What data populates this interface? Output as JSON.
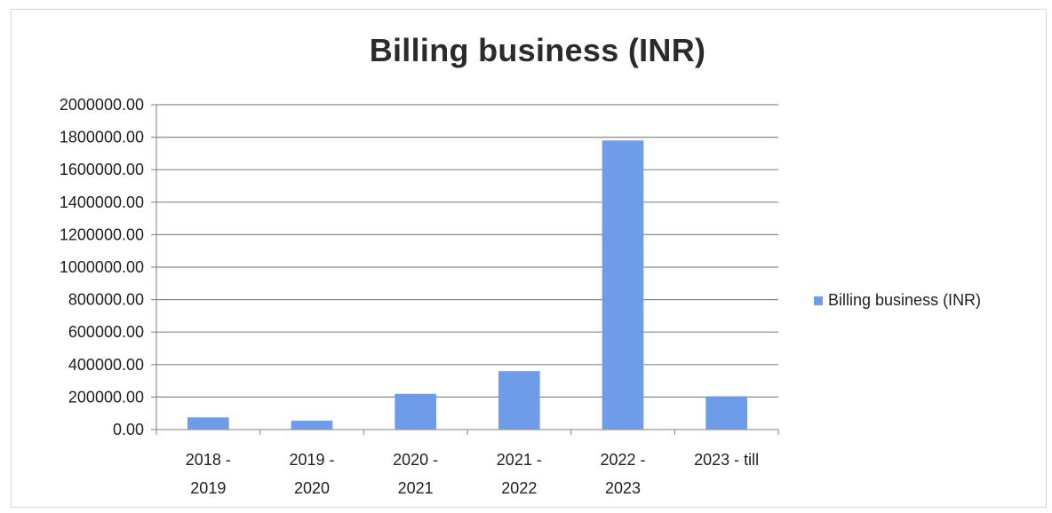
{
  "chart_data": {
    "type": "bar",
    "title": "Billing business (INR)",
    "categories": [
      [
        "2018 -",
        "2019"
      ],
      [
        "2019 -",
        "2020"
      ],
      [
        "2020 -",
        "2021"
      ],
      [
        "2021 -",
        "2022"
      ],
      [
        "2022 -",
        "2023"
      ],
      [
        "2023 - till"
      ]
    ],
    "series": [
      {
        "name": "Billing business (INR)",
        "values": [
          75000,
          55000,
          220000,
          360000,
          1780000,
          205000
        ]
      }
    ],
    "ylim": [
      0,
      2000000
    ],
    "yticks": [
      0,
      200000,
      400000,
      600000,
      800000,
      1000000,
      1200000,
      1400000,
      1600000,
      1800000,
      2000000
    ],
    "yticklabels": [
      "0.00",
      "200000.00",
      "400000.00",
      "600000.00",
      "800000.00",
      "1000000.00",
      "1200000.00",
      "1400000.00",
      "1600000.00",
      "1800000.00",
      "2000000.00"
    ],
    "grid": true,
    "legend": "right",
    "colors": {
      "bar": "#6f9ce8",
      "grid": "#8a8a8a",
      "axis": "#7f7f7f"
    }
  }
}
